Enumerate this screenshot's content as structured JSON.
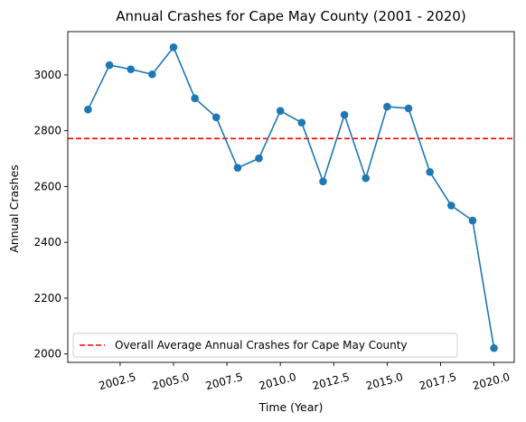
{
  "chart_data": {
    "type": "line",
    "title": "Annual Crashes for Cape May County (2001 - 2020)",
    "xlabel": "Time (Year)",
    "ylabel": "Annual Crashes",
    "xlim": [
      2000.05,
      2020.95
    ],
    "ylim": [
      1970,
      3155
    ],
    "x_ticks": [
      2002.5,
      2005.0,
      2007.5,
      2010.0,
      2012.5,
      2015.0,
      2017.5,
      2020.0
    ],
    "x_tick_labels": [
      "2002.5",
      "2005.0",
      "2007.5",
      "2010.0",
      "2012.5",
      "2015.0",
      "2017.5",
      "2020.0"
    ],
    "y_ticks": [
      2000,
      2200,
      2400,
      2600,
      2800,
      3000
    ],
    "y_tick_labels": [
      "2000",
      "2200",
      "2400",
      "2600",
      "2800",
      "3000"
    ],
    "grid": false,
    "legend_position": "lower-left",
    "series": [
      {
        "color": "#1f77b4",
        "marker": "circle",
        "x": [
          2001,
          2002,
          2003,
          2004,
          2005,
          2006,
          2007,
          2008,
          2009,
          2010,
          2011,
          2012,
          2013,
          2014,
          2015,
          2016,
          2017,
          2018,
          2019,
          2020
        ],
        "y": [
          2876,
          3035,
          3020,
          3002,
          3099,
          2916,
          2848,
          2667,
          2701,
          2871,
          2829,
          2618,
          2857,
          2630,
          2886,
          2880,
          2652,
          2532,
          2478,
          2021
        ]
      }
    ],
    "reference_lines": [
      {
        "name": "Overall Average Annual Crashes for Cape May County",
        "orientation": "horizontal",
        "value": 2772,
        "color": "#ff0000",
        "style": "dashed"
      }
    ]
  }
}
